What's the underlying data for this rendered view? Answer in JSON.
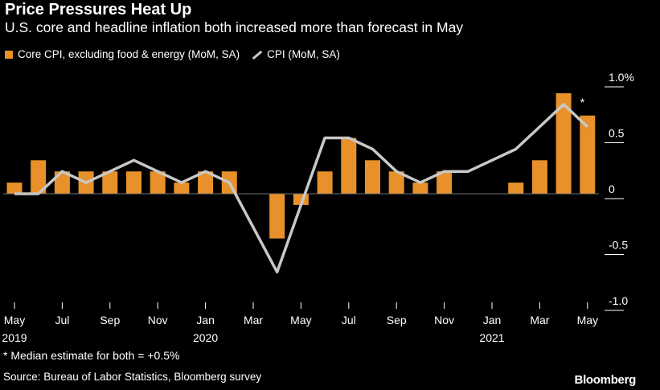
{
  "title": "Price Pressures Heat Up",
  "subtitle": "U.S. core and headline inflation both increased more than forecast in May",
  "legend": {
    "bar_label": "Core CPI, excluding food & energy (MoM, SA)",
    "line_label": "CPI (MoM, SA)"
  },
  "footnote": "* Median estimate for both = +0.5%",
  "source": "Source: Bureau of Labor Statistics, Bloomberg survey",
  "brand": "Bloomberg",
  "colors": {
    "bar": "#e8912b",
    "line": "#c8c8c8",
    "background": "#000000"
  },
  "chart_data": {
    "type": "bar",
    "categories": [
      "May 2019",
      "Jun 2019",
      "Jul 2019",
      "Aug 2019",
      "Sep 2019",
      "Oct 2019",
      "Nov 2019",
      "Dec 2019",
      "Jan 2020",
      "Feb 2020",
      "Mar 2020",
      "Apr 2020",
      "May 2020",
      "Jun 2020",
      "Jul 2020",
      "Aug 2020",
      "Sep 2020",
      "Oct 2020",
      "Nov 2020",
      "Dec 2020",
      "Jan 2021",
      "Feb 2021",
      "Mar 2021",
      "Apr 2021",
      "May 2021"
    ],
    "x_tick_labels": [
      {
        "index": 0,
        "month": "May",
        "year": "2019"
      },
      {
        "index": 2,
        "month": "Jul",
        "year": ""
      },
      {
        "index": 4,
        "month": "Sep",
        "year": ""
      },
      {
        "index": 6,
        "month": "Nov",
        "year": ""
      },
      {
        "index": 8,
        "month": "Jan",
        "year": "2020"
      },
      {
        "index": 10,
        "month": "Mar",
        "year": ""
      },
      {
        "index": 12,
        "month": "May",
        "year": ""
      },
      {
        "index": 14,
        "month": "Jul",
        "year": ""
      },
      {
        "index": 16,
        "month": "Sep",
        "year": ""
      },
      {
        "index": 18,
        "month": "Nov",
        "year": ""
      },
      {
        "index": 20,
        "month": "Jan",
        "year": "2021"
      },
      {
        "index": 22,
        "month": "Mar",
        "year": ""
      },
      {
        "index": 24,
        "month": "May",
        "year": ""
      }
    ],
    "series": [
      {
        "name": "Core CPI, excluding food & energy (MoM, SA)",
        "kind": "bar",
        "values": [
          0.1,
          0.3,
          0.2,
          0.2,
          0.2,
          0.2,
          0.2,
          0.1,
          0.2,
          0.2,
          0.0,
          -0.4,
          -0.1,
          0.2,
          0.5,
          0.3,
          0.2,
          0.1,
          0.2,
          0.0,
          0.0,
          0.1,
          0.3,
          0.9,
          0.7
        ]
      },
      {
        "name": "CPI (MoM, SA)",
        "kind": "line",
        "values": [
          0.0,
          0.0,
          0.2,
          0.1,
          0.2,
          0.3,
          0.2,
          0.1,
          0.2,
          0.1,
          -0.3,
          -0.7,
          -0.1,
          0.5,
          0.5,
          0.4,
          0.2,
          0.1,
          0.2,
          0.2,
          0.3,
          0.4,
          0.6,
          0.8,
          0.6
        ]
      }
    ],
    "y_ticks": [
      {
        "value": 1.0,
        "label": "1.0%"
      },
      {
        "value": 0.5,
        "label": "0.5"
      },
      {
        "value": 0.0,
        "label": "0"
      },
      {
        "value": -0.5,
        "label": "-0.5"
      },
      {
        "value": -1.0,
        "label": "-1.0"
      }
    ],
    "ylim": [
      -1.0,
      1.0
    ],
    "annotation": {
      "index": 24,
      "text": "*"
    },
    "grid": false
  }
}
